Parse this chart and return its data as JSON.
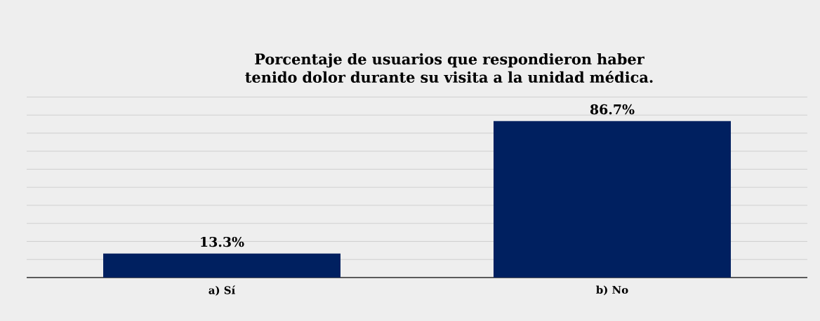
{
  "chart_data": {
    "type": "bar",
    "title": "Porcentaje de usuarios que respondieron haber tenido dolor durante su visita a la unidad médica.",
    "categories": [
      "a) Sí",
      "b) No"
    ],
    "values": [
      13.3,
      86.7
    ],
    "value_labels": [
      "13.3%",
      "86.7%"
    ],
    "color": "#002060",
    "tick_labels": "x",
    "grid": "y"
  }
}
